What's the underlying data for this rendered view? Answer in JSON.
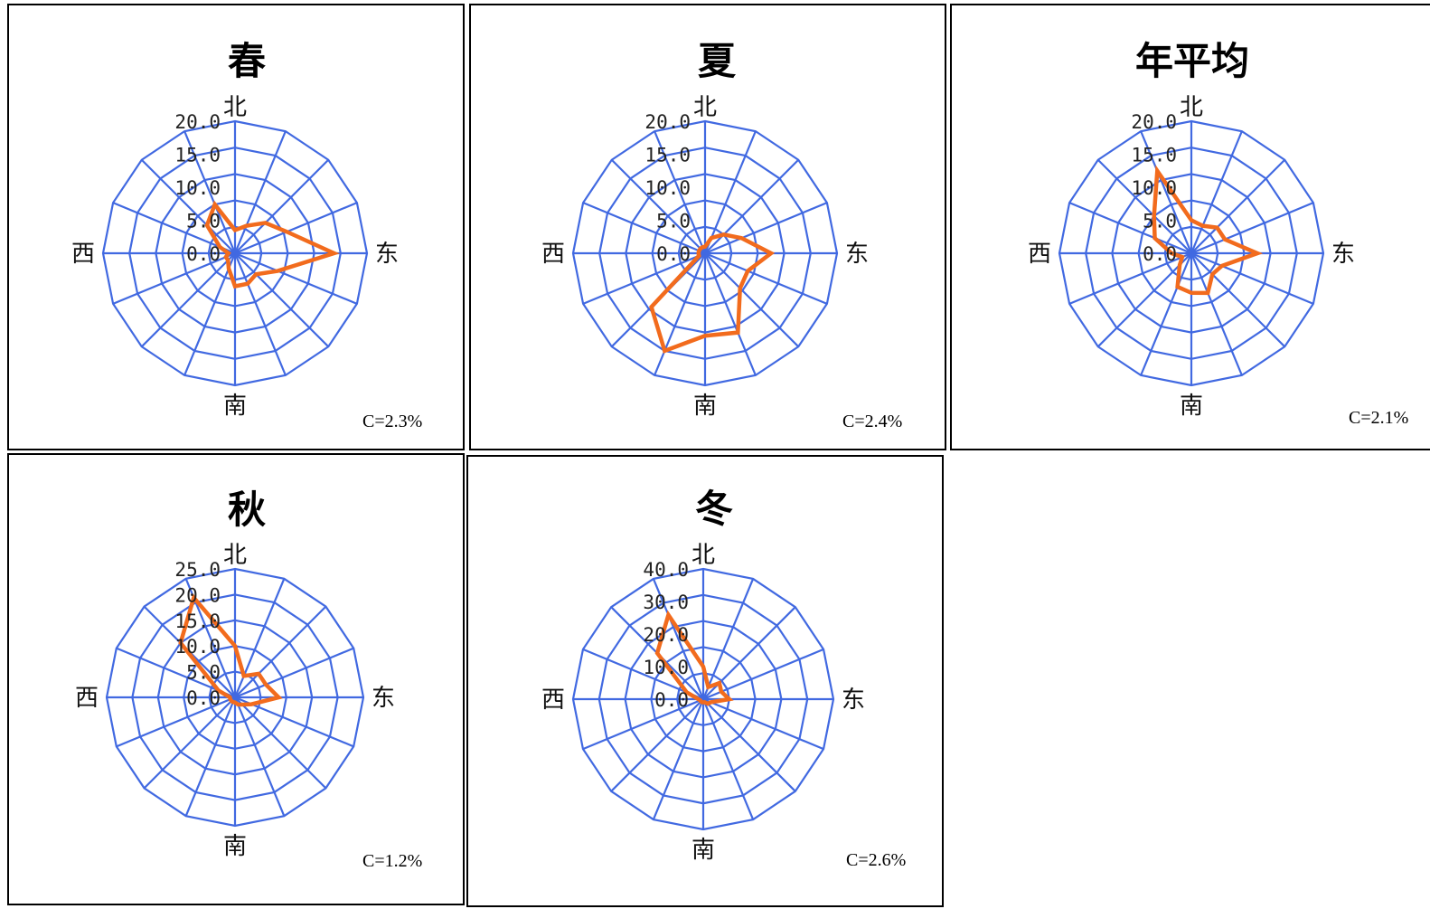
{
  "colors": {
    "grid": "#4169E1",
    "series": "#F26B1D",
    "frame": "#000000"
  },
  "chart_data": [
    {
      "type": "radar",
      "title": "春",
      "directions": [
        "北",
        "东",
        "南",
        "西"
      ],
      "tick_labels": [
        "0.0",
        "5.0",
        "10.0",
        "15.0",
        "20.0"
      ],
      "rmax": 20,
      "calm": "C=2.3%",
      "values": [
        3.5,
        4.5,
        6.5,
        8.5,
        15.0,
        7.0,
        4.5,
        5.0,
        5.0,
        2.5,
        1.5,
        1.5,
        1.0,
        2.5,
        6.0,
        8.0
      ]
    },
    {
      "type": "radar",
      "title": "夏",
      "directions": [
        "北",
        "东",
        "南",
        "西"
      ],
      "tick_labels": [
        "0.0",
        "5.0",
        "10.0",
        "15.0",
        "20.0"
      ],
      "rmax": 20,
      "calm": "C=2.4%",
      "values": [
        1.0,
        2.5,
        4.0,
        6.0,
        10.0,
        7.0,
        7.5,
        13.0,
        12.5,
        16.0,
        11.5,
        1.0,
        1.0,
        1.0,
        1.0,
        1.0
      ]
    },
    {
      "type": "radar",
      "title": "年平均",
      "directions": [
        "北",
        "东",
        "南",
        "西"
      ],
      "tick_labels": [
        "0.0",
        "5.0",
        "10.0",
        "15.0",
        "20.0"
      ],
      "rmax": 20,
      "calm": "C=2.1%",
      "values": [
        5.0,
        4.5,
        5.5,
        5.5,
        10.0,
        5.0,
        4.5,
        6.5,
        6.0,
        5.5,
        2.5,
        1.5,
        3.0,
        6.0,
        8.0,
        13.5
      ]
    },
    {
      "type": "radar",
      "title": "秋",
      "directions": [
        "北",
        "东",
        "南",
        "西"
      ],
      "tick_labels": [
        "0.0",
        "5.0",
        "10.0",
        "15.0",
        "20.0",
        "25.0"
      ],
      "rmax": 25,
      "calm": "C=1.2%",
      "values": [
        10.0,
        4.5,
        6.5,
        6.5,
        8.5,
        3.5,
        2.0,
        1.5,
        1.0,
        1.0,
        1.0,
        1.0,
        1.0,
        3.5,
        15.0,
        21.0
      ]
    },
    {
      "type": "radar",
      "title": "冬",
      "directions": [
        "北",
        "东",
        "南",
        "西"
      ],
      "tick_labels": [
        "0.0",
        "10.0",
        "20.0",
        "30.0",
        "40.0"
      ],
      "rmax": 40,
      "calm": "C=2.6%",
      "values": [
        10.0,
        4.0,
        7.0,
        6.0,
        8.0,
        2.5,
        2.0,
        1.0,
        1.0,
        1.0,
        1.0,
        1.0,
        1.5,
        5.5,
        20.0,
        28.0
      ]
    }
  ]
}
